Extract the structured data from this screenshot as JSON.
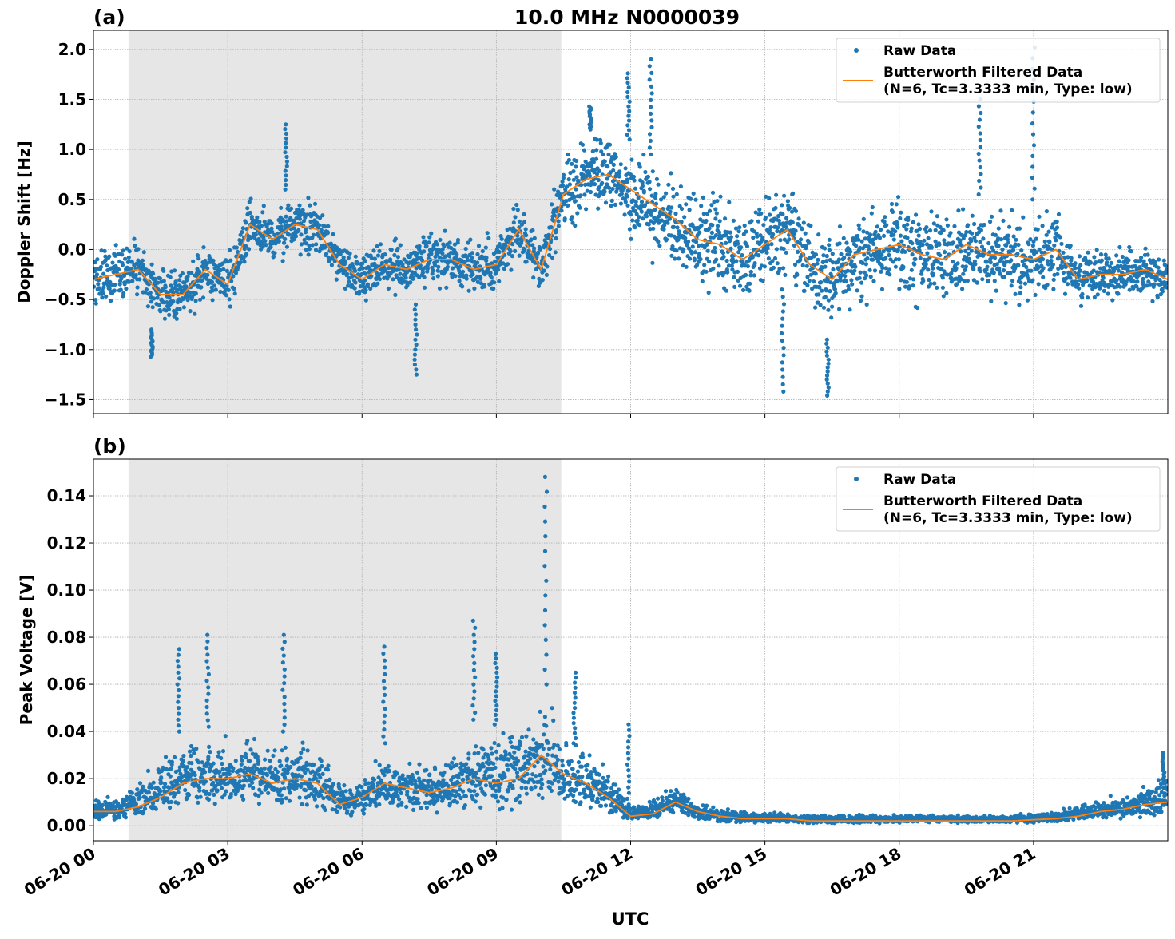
{
  "title": "10.0 MHz N0000039",
  "xlabel": "UTC",
  "x_ticks": [
    "06-20 00",
    "06-20 03",
    "06-20 06",
    "06-20 09",
    "06-20 12",
    "06-20 15",
    "06-20 18",
    "06-20 21"
  ],
  "x_range": [
    "06-20 00:00",
    "06-21 00:00"
  ],
  "shaded_span": [
    "06-20 00:47",
    "06-20 10:27"
  ],
  "colors": {
    "raw": "#1f77b4",
    "filtered": "#ff7f0e",
    "shade": "#e6e6e6",
    "grid": "#b0b0b0"
  },
  "legend": {
    "raw": "Raw Data",
    "filtered_line1": "Butterworth Filtered Data",
    "filtered_line2": "(N=6, Tc=3.3333 min, Type: low)",
    "placement": "upper right"
  },
  "chart_data": [
    {
      "type": "scatter+line",
      "panel_label": "(a)",
      "ylabel": "Doppler Shift [Hz]",
      "ylim": [
        -1.64,
        2.19
      ],
      "y_ticks": [
        "2.0",
        "1.5",
        "1.0",
        "0.5",
        "0.0",
        "−0.5",
        "−1.0",
        "−1.5"
      ],
      "y_tick_values": [
        2.0,
        1.5,
        1.0,
        0.5,
        0.0,
        -0.5,
        -1.0,
        -1.5
      ],
      "grid": true,
      "x": [
        "06-20 00:00",
        "06-20 00:30",
        "06-20 01:00",
        "06-20 01:30",
        "06-20 02:00",
        "06-20 02:30",
        "06-20 03:00",
        "06-20 03:30",
        "06-20 04:00",
        "06-20 04:30",
        "06-20 05:00",
        "06-20 05:30",
        "06-20 06:00",
        "06-20 06:30",
        "06-20 07:00",
        "06-20 07:30",
        "06-20 08:00",
        "06-20 08:30",
        "06-20 09:00",
        "06-20 09:30",
        "06-20 10:00",
        "06-20 10:30",
        "06-20 11:00",
        "06-20 11:30",
        "06-20 12:00",
        "06-20 12:30",
        "06-20 13:00",
        "06-20 13:30",
        "06-20 14:00",
        "06-20 14:30",
        "06-20 15:00",
        "06-20 15:30",
        "06-20 16:00",
        "06-20 16:30",
        "06-20 17:00",
        "06-20 17:30",
        "06-20 18:00",
        "06-20 18:30",
        "06-20 19:00",
        "06-20 19:30",
        "06-20 20:00",
        "06-20 20:30",
        "06-20 21:00",
        "06-20 21:30",
        "06-20 22:00",
        "06-20 22:30",
        "06-20 23:00",
        "06-20 23:30",
        "06-21 00:00"
      ],
      "filtered": [
        -0.3,
        -0.25,
        -0.2,
        -0.45,
        -0.45,
        -0.2,
        -0.35,
        0.25,
        0.1,
        0.25,
        0.2,
        -0.15,
        -0.3,
        -0.15,
        -0.2,
        -0.1,
        -0.1,
        -0.2,
        -0.15,
        0.2,
        -0.2,
        0.55,
        0.7,
        0.75,
        0.6,
        0.45,
        0.3,
        0.1,
        0.05,
        -0.1,
        0.05,
        0.2,
        -0.15,
        -0.3,
        -0.05,
        0.0,
        0.05,
        -0.05,
        -0.1,
        0.05,
        -0.05,
        -0.05,
        -0.1,
        0.0,
        -0.3,
        -0.25,
        -0.25,
        -0.2,
        -0.3
      ],
      "raw_min": [
        -0.65,
        -0.6,
        -0.55,
        -0.8,
        -0.8,
        -0.55,
        -0.7,
        -0.1,
        -0.25,
        -0.1,
        -0.15,
        -0.5,
        -0.65,
        -0.5,
        -0.55,
        -0.45,
        -0.45,
        -0.55,
        -0.5,
        -0.15,
        -0.55,
        0.05,
        0.2,
        0.25,
        0.0,
        -0.2,
        -0.3,
        -0.5,
        -0.55,
        -0.7,
        -0.55,
        -0.4,
        -0.75,
        -0.9,
        -0.65,
        -0.6,
        -0.55,
        -0.65,
        -0.7,
        -0.55,
        -0.65,
        -0.65,
        -0.7,
        -0.6,
        -0.65,
        -0.6,
        -0.6,
        -0.55,
        -0.65
      ],
      "raw_max": [
        0.05,
        0.1,
        0.15,
        -0.1,
        -0.1,
        0.15,
        0.0,
        0.6,
        0.45,
        0.6,
        0.55,
        0.2,
        0.05,
        0.2,
        0.15,
        0.25,
        0.25,
        0.15,
        0.2,
        0.55,
        0.15,
        1.05,
        1.2,
        1.25,
        1.1,
        0.95,
        0.8,
        0.7,
        0.65,
        0.5,
        0.65,
        0.8,
        0.45,
        0.3,
        0.55,
        0.6,
        0.65,
        0.55,
        0.5,
        0.65,
        0.55,
        0.55,
        0.5,
        0.6,
        0.05,
        0.1,
        0.1,
        0.15,
        0.05
      ],
      "raw_peaks": [
        [
          "06-20 04:18",
          1.25
        ],
        [
          "06-20 11:06",
          1.43
        ],
        [
          "06-20 11:57",
          1.76
        ],
        [
          "06-20 12:27",
          1.9
        ],
        [
          "06-20 19:48",
          1.5
        ],
        [
          "06-20 21:00",
          2.02
        ],
        [
          "06-20 07:12",
          -1.25
        ],
        [
          "06-20 15:24",
          -1.42
        ],
        [
          "06-20 16:24",
          -1.46
        ],
        [
          "06-20 01:18",
          -1.07
        ]
      ]
    },
    {
      "type": "scatter+line",
      "panel_label": "(b)",
      "ylabel": "Peak Voltage [V]",
      "ylim": [
        -0.0064,
        0.1556
      ],
      "y_ticks": [
        "0.14",
        "0.12",
        "0.10",
        "0.08",
        "0.06",
        "0.04",
        "0.02",
        "0.00"
      ],
      "y_tick_values": [
        0.14,
        0.12,
        0.1,
        0.08,
        0.06,
        0.04,
        0.02,
        0.0
      ],
      "grid": true,
      "x": [
        "06-20 00:00",
        "06-20 00:30",
        "06-20 01:00",
        "06-20 01:30",
        "06-20 02:00",
        "06-20 02:30",
        "06-20 03:00",
        "06-20 03:30",
        "06-20 04:00",
        "06-20 04:30",
        "06-20 05:00",
        "06-20 05:30",
        "06-20 06:00",
        "06-20 06:30",
        "06-20 07:00",
        "06-20 07:30",
        "06-20 08:00",
        "06-20 08:30",
        "06-20 09:00",
        "06-20 09:30",
        "06-20 10:00",
        "06-20 10:30",
        "06-20 11:00",
        "06-20 11:30",
        "06-20 12:00",
        "06-20 12:30",
        "06-20 13:00",
        "06-20 13:30",
        "06-20 14:00",
        "06-20 14:30",
        "06-20 15:00",
        "06-20 15:30",
        "06-20 16:00",
        "06-20 16:30",
        "06-20 17:00",
        "06-20 17:30",
        "06-20 18:00",
        "06-20 18:30",
        "06-20 19:00",
        "06-20 19:30",
        "06-20 20:00",
        "06-20 20:30",
        "06-20 21:00",
        "06-20 21:30",
        "06-20 22:00",
        "06-20 22:30",
        "06-20 23:00",
        "06-20 23:30",
        "06-21 00:00"
      ],
      "filtered": [
        0.006,
        0.006,
        0.008,
        0.012,
        0.018,
        0.02,
        0.02,
        0.022,
        0.018,
        0.02,
        0.018,
        0.009,
        0.012,
        0.018,
        0.016,
        0.014,
        0.016,
        0.02,
        0.018,
        0.02,
        0.03,
        0.022,
        0.018,
        0.012,
        0.004,
        0.005,
        0.01,
        0.006,
        0.004,
        0.003,
        0.003,
        0.003,
        0.002,
        0.002,
        0.002,
        0.002,
        0.002,
        0.002,
        0.002,
        0.002,
        0.002,
        0.002,
        0.0025,
        0.003,
        0.004,
        0.006,
        0.007,
        0.009,
        0.01
      ],
      "raw_min": [
        0.002,
        0.002,
        0.003,
        0.004,
        0.006,
        0.007,
        0.007,
        0.008,
        0.006,
        0.007,
        0.006,
        0.004,
        0.004,
        0.006,
        0.005,
        0.005,
        0.005,
        0.006,
        0.005,
        0.006,
        0.008,
        0.007,
        0.006,
        0.004,
        0.002,
        0.002,
        0.004,
        0.002,
        0.001,
        0.001,
        0.001,
        0.001,
        0.001,
        0.001,
        0.001,
        0.001,
        0.001,
        0.001,
        0.001,
        0.001,
        0.001,
        0.001,
        0.001,
        0.001,
        0.002,
        0.002,
        0.003,
        0.003,
        0.004
      ],
      "raw_max": [
        0.014,
        0.014,
        0.02,
        0.03,
        0.04,
        0.042,
        0.04,
        0.042,
        0.036,
        0.04,
        0.036,
        0.02,
        0.025,
        0.035,
        0.032,
        0.03,
        0.035,
        0.045,
        0.045,
        0.05,
        0.06,
        0.045,
        0.035,
        0.028,
        0.009,
        0.012,
        0.02,
        0.012,
        0.008,
        0.007,
        0.006,
        0.006,
        0.005,
        0.005,
        0.005,
        0.005,
        0.005,
        0.005,
        0.005,
        0.005,
        0.005,
        0.005,
        0.006,
        0.007,
        0.01,
        0.013,
        0.014,
        0.018,
        0.025
      ],
      "raw_peaks": [
        [
          "06-20 10:06",
          0.148
        ],
        [
          "06-20 01:54",
          0.075
        ],
        [
          "06-20 02:33",
          0.081
        ],
        [
          "06-20 04:15",
          0.081
        ],
        [
          "06-20 06:30",
          0.076
        ],
        [
          "06-20 08:30",
          0.087
        ],
        [
          "06-20 09:00",
          0.073
        ],
        [
          "06-20 10:45",
          0.065
        ],
        [
          "06-20 11:57",
          0.043
        ],
        [
          "06-20 23:54",
          0.031
        ]
      ]
    }
  ]
}
